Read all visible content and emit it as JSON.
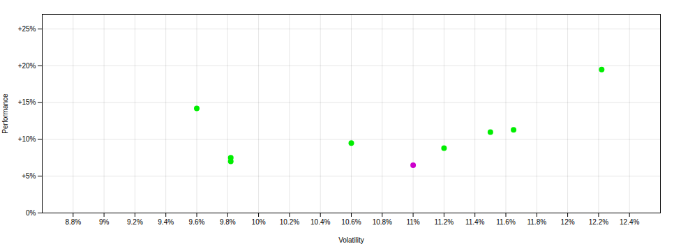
{
  "chart_data": {
    "type": "scatter",
    "x": [
      9.6,
      9.82,
      9.82,
      10.6,
      11.0,
      11.2,
      11.5,
      11.65,
      12.22
    ],
    "values": [
      14.2,
      7.5,
      7.0,
      9.5,
      6.5,
      8.8,
      11.0,
      11.3,
      19.5
    ],
    "colors": [
      "#00ee00",
      "#00ee00",
      "#00ee00",
      "#00ee00",
      "#cc00cc",
      "#00ee00",
      "#00ee00",
      "#00ee00",
      "#00ee00"
    ],
    "xlabel": "Volatility",
    "ylabel": "Performance",
    "xlim": [
      8.6,
      12.6
    ],
    "ylim": [
      0,
      27
    ],
    "xticks": [
      {
        "value": 8.8,
        "label": "8.8%"
      },
      {
        "value": 9.0,
        "label": "9%"
      },
      {
        "value": 9.2,
        "label": "9.2%"
      },
      {
        "value": 9.4,
        "label": "9.4%"
      },
      {
        "value": 9.6,
        "label": "9.6%"
      },
      {
        "value": 9.8,
        "label": "9.8%"
      },
      {
        "value": 10.0,
        "label": "10%"
      },
      {
        "value": 10.2,
        "label": "10.2%"
      },
      {
        "value": 10.4,
        "label": "10.4%"
      },
      {
        "value": 10.6,
        "label": "10.6%"
      },
      {
        "value": 10.8,
        "label": "10.8%"
      },
      {
        "value": 11.0,
        "label": "11%"
      },
      {
        "value": 11.2,
        "label": "11.2%"
      },
      {
        "value": 11.4,
        "label": "11.4%"
      },
      {
        "value": 11.6,
        "label": "11.6%"
      },
      {
        "value": 11.8,
        "label": "11.8%"
      },
      {
        "value": 12.0,
        "label": "12%"
      },
      {
        "value": 12.2,
        "label": "12.2%"
      },
      {
        "value": 12.4,
        "label": "12.4%"
      }
    ],
    "yticks": [
      {
        "value": 0,
        "label": "0%"
      },
      {
        "value": 5,
        "label": "+5%"
      },
      {
        "value": 10,
        "label": "+10%"
      },
      {
        "value": 15,
        "label": "+15%"
      },
      {
        "value": 20,
        "label": "+20%"
      },
      {
        "value": 25,
        "label": "+25%"
      }
    ],
    "grid": true
  }
}
